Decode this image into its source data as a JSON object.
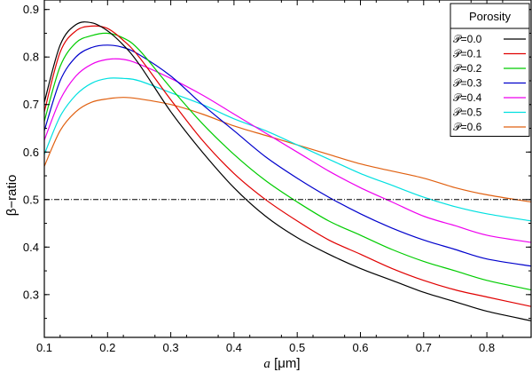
{
  "chart_data": {
    "type": "line",
    "xlabel_var": "a",
    "xlabel_unit": "[μm]",
    "ylabel": "β−ratio",
    "xlim": [
      0.1,
      0.87
    ],
    "ylim": [
      0.21,
      0.92
    ],
    "xticks": [
      0.1,
      0.2,
      0.3,
      0.4,
      0.5,
      0.6,
      0.7,
      0.8
    ],
    "xtick_labels": [
      "0.1",
      "0.2",
      "0.3",
      "0.4",
      "0.5",
      "0.6",
      "0.7",
      "0.8"
    ],
    "yticks": [
      0.3,
      0.4,
      0.5,
      0.6,
      0.7,
      0.8,
      0.9
    ],
    "ytick_labels": [
      "0.3",
      "0.4",
      "0.5",
      "0.6",
      "0.7",
      "0.8",
      "0.9"
    ],
    "grid": false,
    "reference_line": {
      "y": 0.5,
      "style": "dash-dot",
      "color": "#000000"
    },
    "legend": {
      "title": "Porosity",
      "position": "top-right"
    },
    "x": [
      0.1,
      0.125,
      0.15,
      0.175,
      0.2,
      0.225,
      0.25,
      0.3,
      0.35,
      0.4,
      0.45,
      0.5,
      0.55,
      0.6,
      0.65,
      0.7,
      0.75,
      0.8,
      0.87
    ],
    "series": [
      {
        "name": "𝒫=0.0",
        "color": "#000000",
        "values": [
          0.705,
          0.825,
          0.868,
          0.872,
          0.855,
          0.825,
          0.785,
          0.685,
          0.6,
          0.525,
          0.465,
          0.42,
          0.385,
          0.355,
          0.33,
          0.305,
          0.285,
          0.265,
          0.245
        ]
      },
      {
        "name": "𝒫=0.1",
        "color": "#e00000",
        "values": [
          0.685,
          0.81,
          0.855,
          0.865,
          0.86,
          0.835,
          0.8,
          0.71,
          0.625,
          0.555,
          0.5,
          0.455,
          0.415,
          0.385,
          0.355,
          0.33,
          0.31,
          0.295,
          0.275
        ]
      },
      {
        "name": "𝒫=0.2",
        "color": "#00cc00",
        "values": [
          0.665,
          0.78,
          0.83,
          0.845,
          0.85,
          0.84,
          0.815,
          0.735,
          0.66,
          0.595,
          0.54,
          0.495,
          0.455,
          0.425,
          0.395,
          0.37,
          0.35,
          0.33,
          0.31
        ]
      },
      {
        "name": "𝒫=0.3",
        "color": "#0000cc",
        "values": [
          0.645,
          0.75,
          0.8,
          0.82,
          0.825,
          0.82,
          0.805,
          0.76,
          0.7,
          0.645,
          0.59,
          0.545,
          0.505,
          0.47,
          0.44,
          0.415,
          0.395,
          0.375,
          0.36
        ]
      },
      {
        "name": "𝒫=0.4",
        "color": "#ee00ee",
        "values": [
          0.625,
          0.71,
          0.76,
          0.785,
          0.795,
          0.795,
          0.785,
          0.755,
          0.72,
          0.68,
          0.64,
          0.6,
          0.56,
          0.525,
          0.495,
          0.465,
          0.445,
          0.425,
          0.41
        ]
      },
      {
        "name": "𝒫=0.5",
        "color": "#00e0e0",
        "values": [
          0.595,
          0.675,
          0.72,
          0.745,
          0.755,
          0.755,
          0.75,
          0.725,
          0.7,
          0.67,
          0.645,
          0.615,
          0.585,
          0.555,
          0.53,
          0.505,
          0.485,
          0.47,
          0.455
        ]
      },
      {
        "name": "𝒫=0.6",
        "color": "#e06010",
        "values": [
          0.57,
          0.645,
          0.685,
          0.705,
          0.712,
          0.715,
          0.712,
          0.7,
          0.68,
          0.655,
          0.635,
          0.615,
          0.595,
          0.575,
          0.56,
          0.545,
          0.525,
          0.51,
          0.495
        ]
      }
    ]
  }
}
